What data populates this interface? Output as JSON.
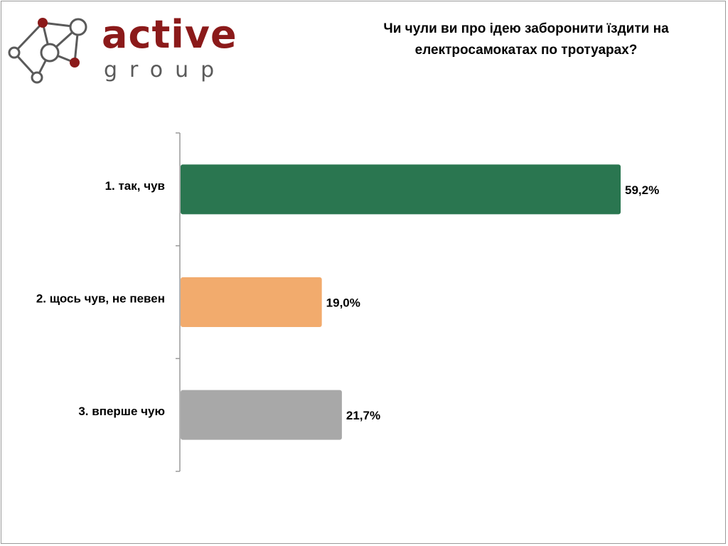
{
  "logo": {
    "word": "active",
    "sub": "group",
    "icon": "molecule-network-icon",
    "brand_color": "#8b1a1a"
  },
  "chart_data": {
    "type": "bar",
    "orientation": "horizontal",
    "title_lines": [
      "Чи чули ви про ідею заборонити їздити на",
      "електросамокатах по тротуарах?"
    ],
    "categories": [
      "1. так, чув",
      "2. щось чув, не певен",
      "3. вперше чую"
    ],
    "values": [
      59.2,
      19.0,
      21.7
    ],
    "value_labels": [
      "59,2%",
      "19,0%",
      "21,7%"
    ],
    "colors": [
      "#2a7650",
      "#f2ab6d",
      "#a8a8a8"
    ],
    "xlim": [
      0,
      100
    ],
    "grid": false,
    "legend": "none"
  }
}
